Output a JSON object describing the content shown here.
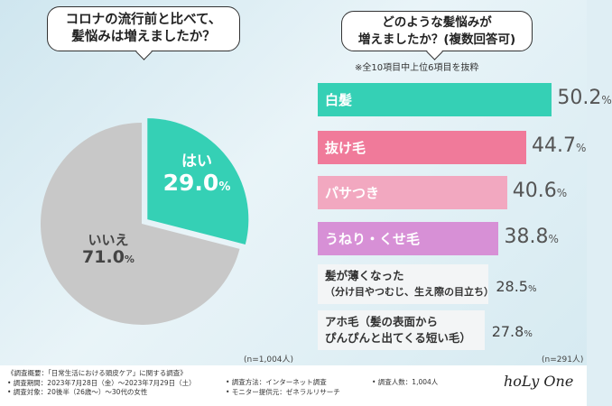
{
  "survey": {
    "question1": [
      "コロナの流行前と比べて、",
      "髪悩みは増えましたか？"
    ],
    "question2": [
      "どのような髪悩みが",
      "増えましたか？(複数回答可)"
    ],
    "note": "※全10項目中上位6項目を抜粋",
    "n_left": "(n=1,004人)",
    "n_right": "(n=291人)"
  },
  "chart_data": [
    {
      "type": "pie",
      "title": "コロナの流行前と比べて、髪悩みは増えましたか？",
      "slices": [
        {
          "label": "はい",
          "value": 29.0,
          "value_text": "29.0%",
          "color": "#35d0b5"
        },
        {
          "label": "いいえ",
          "value": 71.0,
          "value_text": "71.0%",
          "color": "#c8c8c8"
        }
      ]
    },
    {
      "type": "bar",
      "orientation": "horizontal",
      "title": "どのような髪悩みが増えましたか？(複数回答可)",
      "categories": [
        "白髪",
        "抜け毛",
        "パサつき",
        "うねり・くせ毛",
        "髪が薄くなった（分け目やつむじ、生え際の目立ち）",
        "アホ毛（髪の表面からぴんぴんと出てくる短い毛）"
      ],
      "values": [
        50.2,
        44.7,
        40.6,
        38.8,
        28.5,
        27.8
      ],
      "xlim": [
        0,
        55
      ]
    }
  ],
  "bars": [
    {
      "label": "白髪",
      "value": "50.2",
      "color": "#35d0b5"
    },
    {
      "label": "抜け毛",
      "value": "44.7",
      "color": "#f07a9a"
    },
    {
      "label": "パサつき",
      "value": "40.6",
      "color": "#f2a8c0"
    },
    {
      "label": "うねり・くせ毛",
      "value": "38.8",
      "color": "#d790d6"
    }
  ],
  "plain_bars": [
    {
      "line1": "髪が薄くなった",
      "line2": "（分け目やつむじ、生え際の目立ち）",
      "value": "28.5"
    },
    {
      "line1": "アホ毛（髪の表面から",
      "line2": "ぴんぴんと出てくる短い毛）",
      "value": "27.8"
    }
  ],
  "pie_labels": {
    "yes_label": "はい",
    "yes_value": "29.0",
    "yes_unit": "%",
    "no_label": "いいえ",
    "no_value": "71.0",
    "no_unit": "%"
  },
  "footer": {
    "col1": [
      "《調査概要：「日常生活における頭皮ケア」に関する調査》",
      "• 調査期間：2023年7月28日（金）～2023年7月29日（土）",
      "• 調査対象：20後半（26歳～）～30代の女性"
    ],
    "col2": [
      "• 調査方法：インターネット調査",
      "• モニター提供元：ゼネラルリサーチ"
    ],
    "col3": [
      "• 調査人数：1,004人"
    ],
    "logo": "hoLy One"
  },
  "colors": {
    "accent_green": "#35d0b5",
    "grey": "#c8c8c8"
  }
}
